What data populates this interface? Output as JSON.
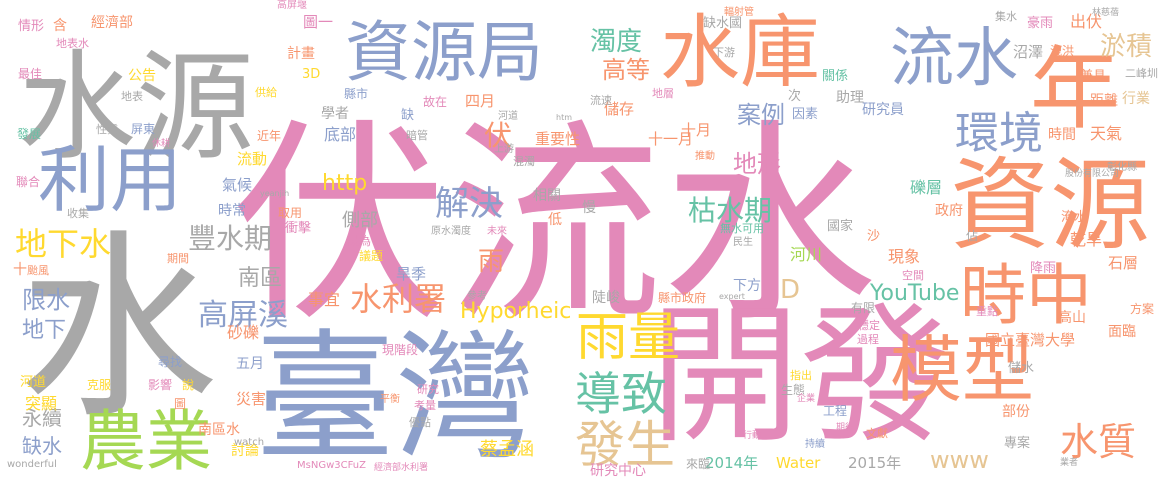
{
  "palette": {
    "gray": "#a8a8a8",
    "pink": "#e389b9",
    "blue": "#8c9fcb",
    "orange": "#f7956e",
    "green": "#66c2a5",
    "tan": "#e6c593",
    "lime": "#a5d853",
    "yellow": "#ffd92f"
  },
  "words": [
    {
      "text": "伏流水",
      "color": "pink",
      "weight": 1.0
    },
    {
      "text": "水",
      "color": "gray",
      "weight": 0.95
    },
    {
      "text": "水源",
      "color": "gray",
      "weight": 0.7
    },
    {
      "text": "開發",
      "color": "pink",
      "weight": 0.75
    },
    {
      "text": "臺灣",
      "color": "blue",
      "weight": 0.72
    },
    {
      "text": "資源",
      "color": "orange",
      "weight": 0.55
    },
    {
      "text": "資源局",
      "color": "blue",
      "weight": 0.42
    },
    {
      "text": "水庫",
      "color": "orange",
      "weight": 0.43
    },
    {
      "text": "流水",
      "color": "blue",
      "weight": 0.37
    },
    {
      "text": "年",
      "color": "orange",
      "weight": 0.45
    },
    {
      "text": "利用",
      "color": "blue",
      "weight": 0.42
    },
    {
      "text": "時中",
      "color": "orange",
      "weight": 0.37
    },
    {
      "text": "模型",
      "color": "orange",
      "weight": 0.4
    },
    {
      "text": "農業",
      "color": "lime",
      "weight": 0.38
    },
    {
      "text": "雨量",
      "color": "yellow",
      "weight": 0.28
    },
    {
      "text": "導致",
      "color": "green",
      "weight": 0.26
    },
    {
      "text": "發生",
      "color": "tan",
      "weight": 0.27
    },
    {
      "text": "環境",
      "color": "blue",
      "weight": 0.24
    },
    {
      "text": "解決",
      "color": "blue",
      "weight": 0.2
    },
    {
      "text": "水利署",
      "color": "orange",
      "weight": 0.18
    },
    {
      "text": "水質",
      "color": "orange",
      "weight": 0.2
    },
    {
      "text": "地下水",
      "color": "yellow",
      "weight": 0.18
    },
    {
      "text": "豐水期",
      "color": "gray",
      "weight": 0.16
    },
    {
      "text": "高屏溪",
      "color": "blue",
      "weight": 0.17
    },
    {
      "text": "枯水期",
      "color": "green",
      "weight": 0.15
    },
    {
      "text": "YouTube",
      "color": "green",
      "weight": 0.13
    },
    {
      "text": "Hyporheic",
      "color": "yellow",
      "weight": 0.12
    },
    {
      "text": "淤積",
      "color": "tan",
      "weight": 0.14
    },
    {
      "text": "濁度",
      "color": "green",
      "weight": 0.14
    },
    {
      "text": "高等",
      "color": "orange",
      "weight": 0.13
    },
    {
      "text": "案例",
      "color": "blue",
      "weight": 0.13
    },
    {
      "text": "地形",
      "color": "pink",
      "weight": 0.13
    },
    {
      "text": "http",
      "color": "yellow",
      "weight": 0.12
    },
    {
      "text": "伏",
      "color": "orange",
      "weight": 0.15
    },
    {
      "text": "雨",
      "color": "orange",
      "weight": 0.14
    },
    {
      "text": "限水",
      "color": "blue",
      "weight": 0.13
    },
    {
      "text": "地下",
      "color": "blue",
      "weight": 0.12
    },
    {
      "text": "南區",
      "color": "gray",
      "weight": 0.12
    },
    {
      "text": "缺水",
      "color": "blue",
      "weight": 0.11
    },
    {
      "text": "永續",
      "color": "gray",
      "weight": 0.11
    },
    {
      "text": "www",
      "color": "tan",
      "weight": 0.12
    },
    {
      "text": "D",
      "color": "tan",
      "weight": 0.14
    },
    {
      "text": "河川",
      "color": "lime",
      "weight": 0.09
    },
    {
      "text": "蔡孟涵",
      "color": "yellow",
      "weight": 0.1
    },
    {
      "text": "國立臺灣大學",
      "color": "orange",
      "weight": 0.09
    },
    {
      "text": "研究中心",
      "color": "pink",
      "weight": 0.08
    },
    {
      "text": "2014年",
      "color": "green",
      "weight": 0.08
    },
    {
      "text": "Water",
      "color": "yellow",
      "weight": 0.08
    },
    {
      "text": "2015年",
      "color": "gray",
      "weight": 0.08
    },
    {
      "text": "經濟部",
      "color": "orange",
      "weight": 0.08
    },
    {
      "text": "圖一",
      "color": "pink",
      "weight": 0.08
    },
    {
      "text": "出伏",
      "color": "orange",
      "weight": 0.08
    },
    {
      "text": "沼澤",
      "color": "gray",
      "weight": 0.08
    },
    {
      "text": "情形",
      "color": "pink",
      "weight": 0.07
    },
    {
      "text": "含",
      "color": "orange",
      "weight": 0.07
    },
    {
      "text": "地表水",
      "color": "pink",
      "weight": 0.06
    },
    {
      "text": "最佳",
      "color": "pink",
      "weight": 0.06
    },
    {
      "text": "發展",
      "color": "green",
      "weight": 0.06
    },
    {
      "text": "聯合",
      "color": "pink",
      "weight": 0.06
    },
    {
      "text": "收集",
      "color": "gray",
      "weight": 0.06
    },
    {
      "text": "公告",
      "color": "yellow",
      "weight": 0.06
    },
    {
      "text": "地表",
      "color": "gray",
      "weight": 0.06
    },
    {
      "text": "性質",
      "color": "gray",
      "weight": 0.06
    },
    {
      "text": "屏東",
      "color": "blue",
      "weight": 0.06
    },
    {
      "text": "計畫",
      "color": "orange",
      "weight": 0.07
    },
    {
      "text": "3D",
      "color": "yellow",
      "weight": 0.07
    },
    {
      "text": "供給",
      "color": "yellow",
      "weight": 0.06
    },
    {
      "text": "故在",
      "color": "pink",
      "weight": 0.06
    },
    {
      "text": "四月",
      "color": "orange",
      "weight": 0.07
    },
    {
      "text": "學者",
      "color": "gray",
      "weight": 0.07
    },
    {
      "text": "縣市",
      "color": "blue",
      "weight": 0.07
    },
    {
      "text": "底部",
      "color": "blue",
      "weight": 0.08
    },
    {
      "text": "流動",
      "color": "yellow",
      "weight": 0.07
    },
    {
      "text": "氣候",
      "color": "blue",
      "weight": 0.07
    },
    {
      "text": "時常",
      "color": "blue",
      "weight": 0.07
    },
    {
      "text": "側部",
      "color": "gray",
      "weight": 0.08
    },
    {
      "text": "事宜",
      "color": "orange",
      "weight": 0.07
    },
    {
      "text": "十一月",
      "color": "orange",
      "weight": 0.07
    },
    {
      "text": "十月",
      "color": "orange",
      "weight": 0.07
    },
    {
      "text": "重要性",
      "color": "orange",
      "weight": 0.07
    },
    {
      "text": "儲存",
      "color": "orange",
      "weight": 0.07
    },
    {
      "text": "助理",
      "color": "gray",
      "weight": 0.07
    },
    {
      "text": "研究員",
      "color": "blue",
      "weight": 0.07
    },
    {
      "text": "時間",
      "color": "orange",
      "weight": 0.07
    },
    {
      "text": "天氣",
      "color": "orange",
      "weight": 0.07
    },
    {
      "text": "行業",
      "color": "tan",
      "weight": 0.07
    },
    {
      "text": "距離",
      "color": "orange",
      "weight": 0.07
    },
    {
      "text": "兼具",
      "color": "orange",
      "weight": 0.06
    },
    {
      "text": "政府",
      "color": "orange",
      "weight": 0.07
    },
    {
      "text": "乾旱",
      "color": "orange",
      "weight": 0.07
    },
    {
      "text": "石層",
      "color": "orange",
      "weight": 0.07
    },
    {
      "text": "礫層",
      "color": "green",
      "weight": 0.07
    },
    {
      "text": "現象",
      "color": "orange",
      "weight": 0.07
    },
    {
      "text": "降雨",
      "color": "pink",
      "weight": 0.07
    },
    {
      "text": "高山",
      "color": "orange",
      "weight": 0.07
    },
    {
      "text": "面臨",
      "color": "orange",
      "weight": 0.07
    },
    {
      "text": "方案",
      "color": "orange",
      "weight": 0.06
    },
    {
      "text": "專案",
      "color": "gray",
      "weight": 0.06
    },
    {
      "text": "部份",
      "color": "orange",
      "weight": 0.07
    },
    {
      "text": "工程",
      "color": "blue",
      "weight": 0.06
    },
    {
      "text": "生態",
      "color": "gray",
      "weight": 0.06
    },
    {
      "text": "文獻",
      "color": "orange",
      "weight": 0.06
    },
    {
      "text": "來臨",
      "color": "gray",
      "weight": 0.06
    },
    {
      "text": "旱季",
      "color": "blue",
      "weight": 0.07
    },
    {
      "text": "下方",
      "color": "blue",
      "weight": 0.07
    },
    {
      "text": "縣市政府",
      "color": "orange",
      "weight": 0.06
    },
    {
      "text": "陡峻",
      "color": "gray",
      "weight": 0.06
    },
    {
      "text": "現階段",
      "color": "pink",
      "weight": 0.06
    },
    {
      "text": "砂礫",
      "color": "orange",
      "weight": 0.07
    },
    {
      "text": "五月",
      "color": "blue",
      "weight": 0.07
    },
    {
      "text": "災害",
      "color": "orange",
      "weight": 0.07
    },
    {
      "text": "南區水",
      "color": "orange",
      "weight": 0.07
    },
    {
      "text": "討論",
      "color": "yellow",
      "weight": 0.07
    },
    {
      "text": "河道",
      "color": "yellow",
      "weight": 0.07
    },
    {
      "text": "突顯",
      "color": "yellow",
      "weight": 0.07
    },
    {
      "text": "克服",
      "color": "yellow",
      "weight": 0.06
    },
    {
      "text": "影響",
      "color": "pink",
      "weight": 0.06
    },
    {
      "text": "說",
      "color": "yellow",
      "weight": 0.06
    },
    {
      "text": "尋找",
      "color": "blue",
      "weight": 0.06
    },
    {
      "text": "圖",
      "color": "orange",
      "weight": 0.06
    },
    {
      "text": "十",
      "color": "orange",
      "weight": 0.07
    },
    {
      "text": "颱風",
      "color": "orange",
      "weight": 0.06
    },
    {
      "text": "期間",
      "color": "orange",
      "weight": 0.06
    },
    {
      "text": "議題",
      "color": "yellow",
      "weight": 0.06
    },
    {
      "text": "最為",
      "color": "pink",
      "weight": 0.06
    },
    {
      "text": "國家",
      "color": "gray",
      "weight": 0.06
    },
    {
      "text": "無水可用",
      "color": "green",
      "weight": 0.06
    },
    {
      "text": "民生",
      "color": "gray",
      "weight": 0.05
    },
    {
      "text": "佔",
      "color": "gray",
      "weight": 0.06
    },
    {
      "text": "沙",
      "color": "orange",
      "weight": 0.06
    },
    {
      "text": "空間",
      "color": "pink",
      "weight": 0.05
    },
    {
      "text": "有限",
      "color": "gray",
      "weight": 0.06
    },
    {
      "text": "穩定",
      "color": "pink",
      "weight": 0.05
    },
    {
      "text": "過程",
      "color": "pink",
      "weight": 0.05
    },
    {
      "text": "重點",
      "color": "pink",
      "weight": 0.05
    },
    {
      "text": "指出",
      "color": "yellow",
      "weight": 0.05
    },
    {
      "text": "儲水",
      "color": "gray",
      "weight": 0.06
    },
    {
      "text": "淹水",
      "color": "orange",
      "weight": 0.06
    },
    {
      "text": "缺水國",
      "color": "gray",
      "weight": 0.06
    },
    {
      "text": "集水",
      "color": "gray",
      "weight": 0.05
    },
    {
      "text": "豪雨",
      "color": "pink",
      "weight": 0.06
    },
    {
      "text": "洩洪",
      "color": "orange",
      "weight": 0.06
    },
    {
      "text": "關係",
      "color": "green",
      "weight": 0.06
    },
    {
      "text": "下游",
      "color": "gray",
      "weight": 0.05
    },
    {
      "text": "輻射管",
      "color": "orange",
      "weight": 0.05
    },
    {
      "text": "高屏堰",
      "color": "pink",
      "weight": 0.05
    },
    {
      "text": "林慈蓓",
      "color": "gray",
      "weight": 0.04
    },
    {
      "text": "二峰圳",
      "color": "gray",
      "weight": 0.05
    },
    {
      "text": "彰化縣",
      "color": "gray",
      "weight": 0.04
    },
    {
      "text": "因素",
      "color": "blue",
      "weight": 0.06
    },
    {
      "text": "次",
      "color": "gray",
      "weight": 0.06
    },
    {
      "text": "推動",
      "color": "orange",
      "weight": 0.05
    },
    {
      "text": "地層",
      "color": "pink",
      "weight": 0.05
    },
    {
      "text": "流速",
      "color": "gray",
      "weight": 0.05
    },
    {
      "text": "河道",
      "color": "gray",
      "weight": 0.05
    },
    {
      "text": "暗管",
      "color": "gray",
      "weight": 0.05
    },
    {
      "text": "缺",
      "color": "blue",
      "weight": 0.06
    },
    {
      "text": "混濁",
      "color": "gray",
      "weight": 0.05
    },
    {
      "text": "上游",
      "color": "gray",
      "weight": 0.05
    },
    {
      "text": "相關",
      "color": "gray",
      "weight": 0.06
    },
    {
      "text": "低",
      "color": "orange",
      "weight": 0.06
    },
    {
      "text": "慢",
      "color": "gray",
      "weight": 0.06
    },
    {
      "text": "原水濁度",
      "color": "gray",
      "weight": 0.05
    },
    {
      "text": "未來",
      "color": "pink",
      "weight": 0.05
    },
    {
      "text": "衝擊",
      "color": "pink",
      "weight": 0.06
    },
    {
      "text": "取用",
      "color": "orange",
      "weight": 0.06
    },
    {
      "text": "參考",
      "color": "gray",
      "weight": 0.05
    },
    {
      "text": "優點",
      "color": "gray",
      "weight": 0.05
    },
    {
      "text": "研究",
      "color": "pink",
      "weight": 0.05
    },
    {
      "text": "考量",
      "color": "pink",
      "weight": 0.05
    },
    {
      "text": "平衡",
      "color": "orange",
      "weight": 0.05
    },
    {
      "text": "近年",
      "color": "orange",
      "weight": 0.06
    },
    {
      "text": "休耕",
      "color": "pink",
      "weight": 0.04
    },
    {
      "text": "watch",
      "color": "gray",
      "weight": 0.04
    },
    {
      "text": "wonderful",
      "color": "gray",
      "weight": 0.04
    },
    {
      "text": "yeanjih",
      "color": "gray",
      "weight": 0.04
    },
    {
      "text": "htm",
      "color": "gray",
      "weight": 0.04
    },
    {
      "text": "expert",
      "color": "gray",
      "weight": 0.04
    },
    {
      "text": "MsNGw3CFuZ",
      "color": "pink",
      "weight": 0.04
    },
    {
      "text": "經濟部水利署",
      "color": "pink",
      "weight": 0.04
    },
    {
      "text": "股份有限公司",
      "color": "gray",
      "weight": 0.04
    },
    {
      "text": "持續",
      "color": "blue",
      "weight": 0.04
    },
    {
      "text": "期待",
      "color": "pink",
      "weight": 0.04
    },
    {
      "text": "企業",
      "color": "pink",
      "weight": 0.04
    },
    {
      "text": "行動",
      "color": "pink",
      "weight": 0.04
    },
    {
      "text": "業者",
      "color": "gray",
      "weight": 0.04
    }
  ]
}
